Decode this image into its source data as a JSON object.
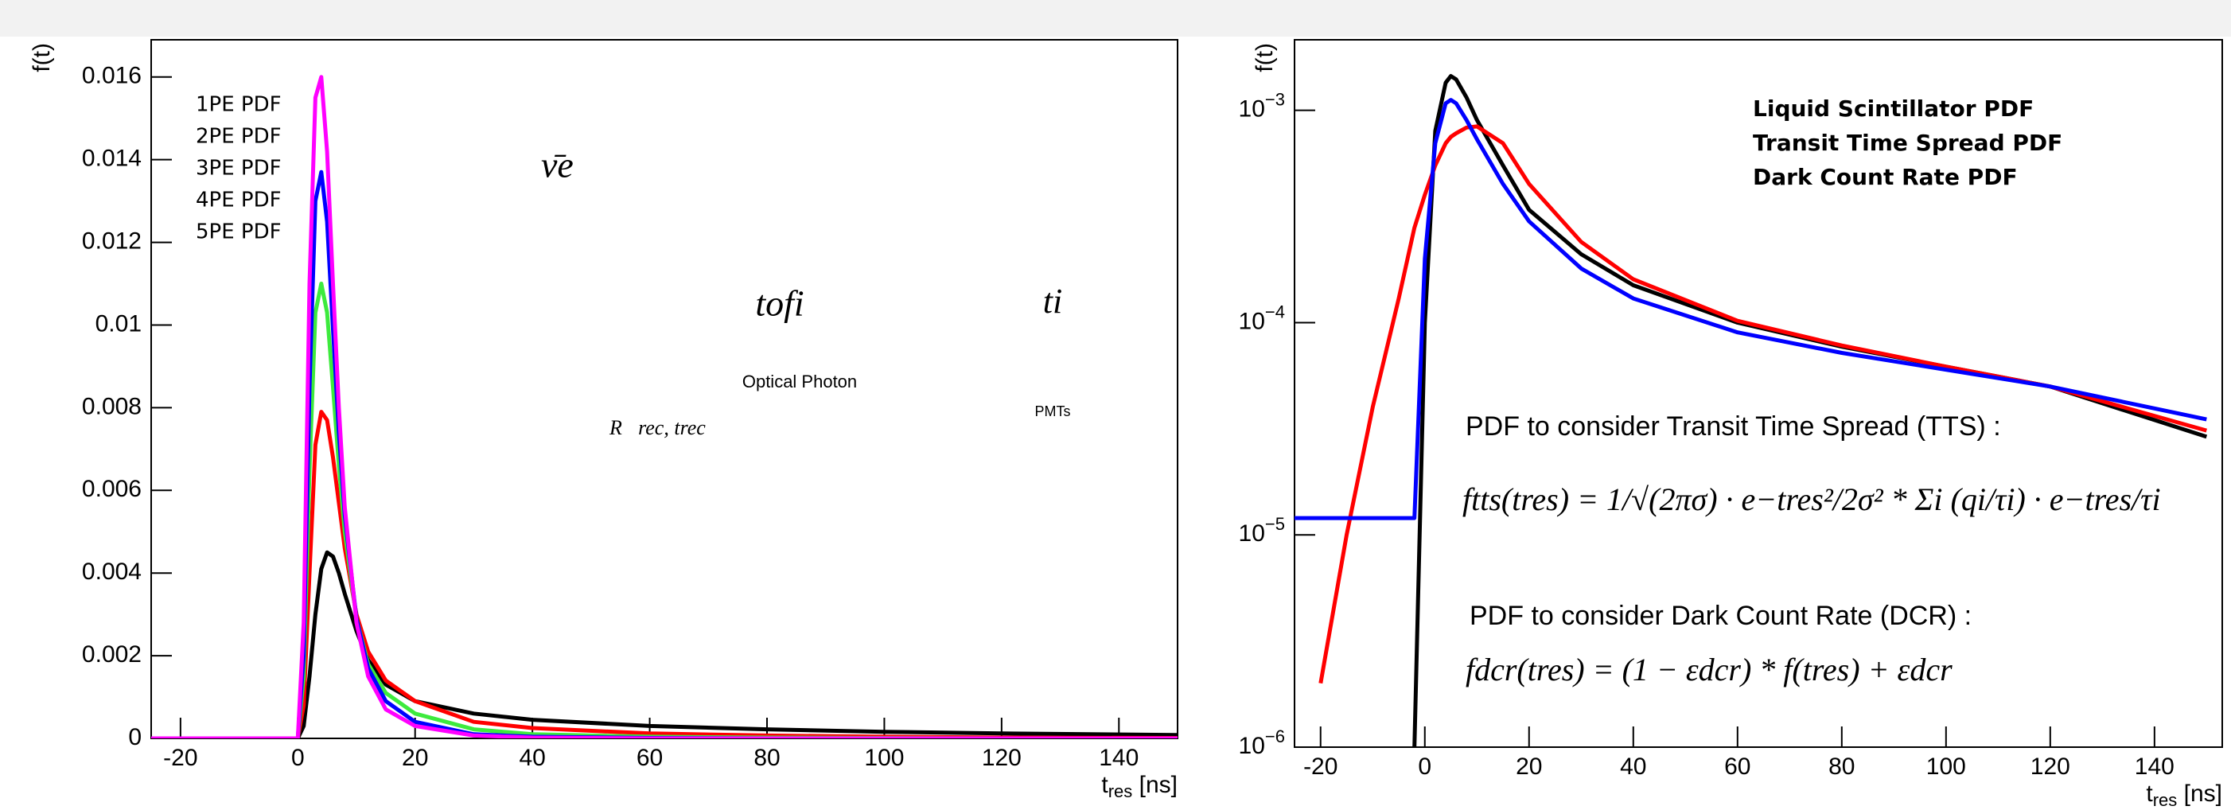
{
  "chart_data": [
    {
      "type": "line",
      "ylabel": "f(t)",
      "xlabel": "tres [ns]",
      "xlim": [
        -25,
        150
      ],
      "xticks": [
        -20,
        0,
        20,
        40,
        60,
        80,
        100,
        120,
        140
      ],
      "ylim": [
        0,
        0.0169
      ],
      "yticks": [
        0,
        0.002,
        0.004,
        0.006,
        0.008,
        0.01,
        0.012,
        0.014,
        0.016
      ],
      "log_y": false,
      "legend": "upper left",
      "x": [
        -25,
        -10,
        0,
        1,
        2,
        3,
        4,
        5,
        6,
        7,
        8,
        10,
        12,
        15,
        20,
        30,
        40,
        60,
        80,
        100,
        120,
        150
      ],
      "series": [
        {
          "name": "1PE PDF",
          "color": "#000000",
          "values": [
            0,
            0,
            0,
            0.0003,
            0.0015,
            0.003,
            0.0041,
            0.0045,
            0.0044,
            0.004,
            0.0035,
            0.0026,
            0.0019,
            0.0013,
            0.0009,
            0.0006,
            0.00045,
            0.0003,
            0.00022,
            0.00016,
            0.00012,
            8e-05
          ]
        },
        {
          "name": "2PE PDF",
          "color": "#ff0000",
          "values": [
            0,
            0,
            0,
            0.0008,
            0.004,
            0.0071,
            0.0079,
            0.0077,
            0.0068,
            0.0057,
            0.0046,
            0.003,
            0.0021,
            0.0014,
            0.0009,
            0.0004,
            0.00025,
            0.00012,
            7e-05,
            4e-05,
            2e-05,
            1e-05
          ]
        },
        {
          "name": "3PE PDF",
          "color": "#3dea3d",
          "values": [
            0,
            0,
            0,
            0.0015,
            0.0065,
            0.0103,
            0.011,
            0.0103,
            0.0085,
            0.0066,
            0.005,
            0.0029,
            0.0018,
            0.0011,
            0.0006,
            0.00022,
            0.0001,
            4e-05,
            2e-05,
            1e-05,
            0,
            0
          ]
        },
        {
          "name": "4PE PDF",
          "color": "#0000ff",
          "values": [
            0,
            0,
            0,
            0.002,
            0.0085,
            0.013,
            0.0137,
            0.0125,
            0.0099,
            0.0074,
            0.0054,
            0.0029,
            0.0017,
            0.0009,
            0.0004,
            0.0001,
            4e-05,
            1e-05,
            0,
            0,
            0,
            0
          ]
        },
        {
          "name": "5PE PDF",
          "color": "#ff00ff",
          "values": [
            0,
            0,
            0,
            0.0028,
            0.011,
            0.0155,
            0.016,
            0.0142,
            0.011,
            0.008,
            0.0056,
            0.0028,
            0.0015,
            0.0007,
            0.0003,
            7e-05,
            2e-05,
            0,
            0,
            0,
            0,
            0
          ]
        }
      ],
      "annotations": [
        "ν̄e",
        "tofi",
        "ti",
        "Optical Photon",
        "PMTs",
        "R⃗rec, trec"
      ]
    },
    {
      "type": "line",
      "ylabel": "f(t)",
      "xlabel": "tres [ns]",
      "xlim": [
        -25,
        153
      ],
      "xticks": [
        -20,
        0,
        20,
        40,
        60,
        80,
        100,
        120,
        140
      ],
      "ylim": [
        1e-06,
        0.00215
      ],
      "yticks": [
        {
          "value": 1e-06,
          "label": "10−6"
        },
        {
          "value": 1e-05,
          "label": "10−5"
        },
        {
          "value": 0.0001,
          "label": "10−4"
        },
        {
          "value": 0.001,
          "label": "10−3"
        }
      ],
      "log_y": true,
      "legend": "upper right",
      "x": [
        -25,
        -20,
        -15,
        -10,
        -5,
        -2,
        0,
        2,
        4,
        5,
        6,
        8,
        10,
        15,
        20,
        30,
        40,
        60,
        80,
        100,
        120,
        150
      ],
      "series": [
        {
          "name": "Liquid Scintillator PDF",
          "color": "#000000",
          "values": [
            null,
            null,
            null,
            null,
            null,
            1e-06,
            0.0001,
            0.0008,
            0.00135,
            0.00145,
            0.0014,
            0.00115,
            0.0009,
            0.00055,
            0.00034,
            0.00021,
            0.00015,
            0.0001,
            7.7e-05,
            6.2e-05,
            5e-05,
            2.9e-05
          ]
        },
        {
          "name": "Transit Time Spread PDF",
          "color": "#ff0000",
          "values": [
            null,
            2e-06,
            1e-05,
            4e-05,
            0.00013,
            0.00028,
            0.0004,
            0.00055,
            0.0007,
            0.00075,
            0.00078,
            0.00083,
            0.00084,
            0.0007,
            0.00045,
            0.00024,
            0.00016,
            0.000102,
            7.8e-05,
            6.2e-05,
            5e-05,
            3.1e-05
          ]
        },
        {
          "name": "Dark Count Rate PDF",
          "color": "#0000ff",
          "values": [
            1.2e-05,
            1.2e-05,
            1.2e-05,
            1.2e-05,
            1.2e-05,
            1.2e-05,
            0.0002,
            0.0007,
            0.00108,
            0.00112,
            0.00108,
            0.0009,
            0.00073,
            0.00045,
            0.0003,
            0.00018,
            0.00013,
            9e-05,
            7.2e-05,
            6e-05,
            5e-05,
            3.5e-05
          ]
        }
      ],
      "annotations": [
        "PDF to consider Transit Time Spread (TTS) :",
        "ftts(tres) = 1/√(2πσ) · e−tres²/2σ² * Σi (qi/τi) · e−tres/τi",
        "PDF to consider Dark Count Rate (DCR) :",
        "fdcr(tres) = (1 − εdcr) * f(tres) + εdcr"
      ]
    }
  ]
}
